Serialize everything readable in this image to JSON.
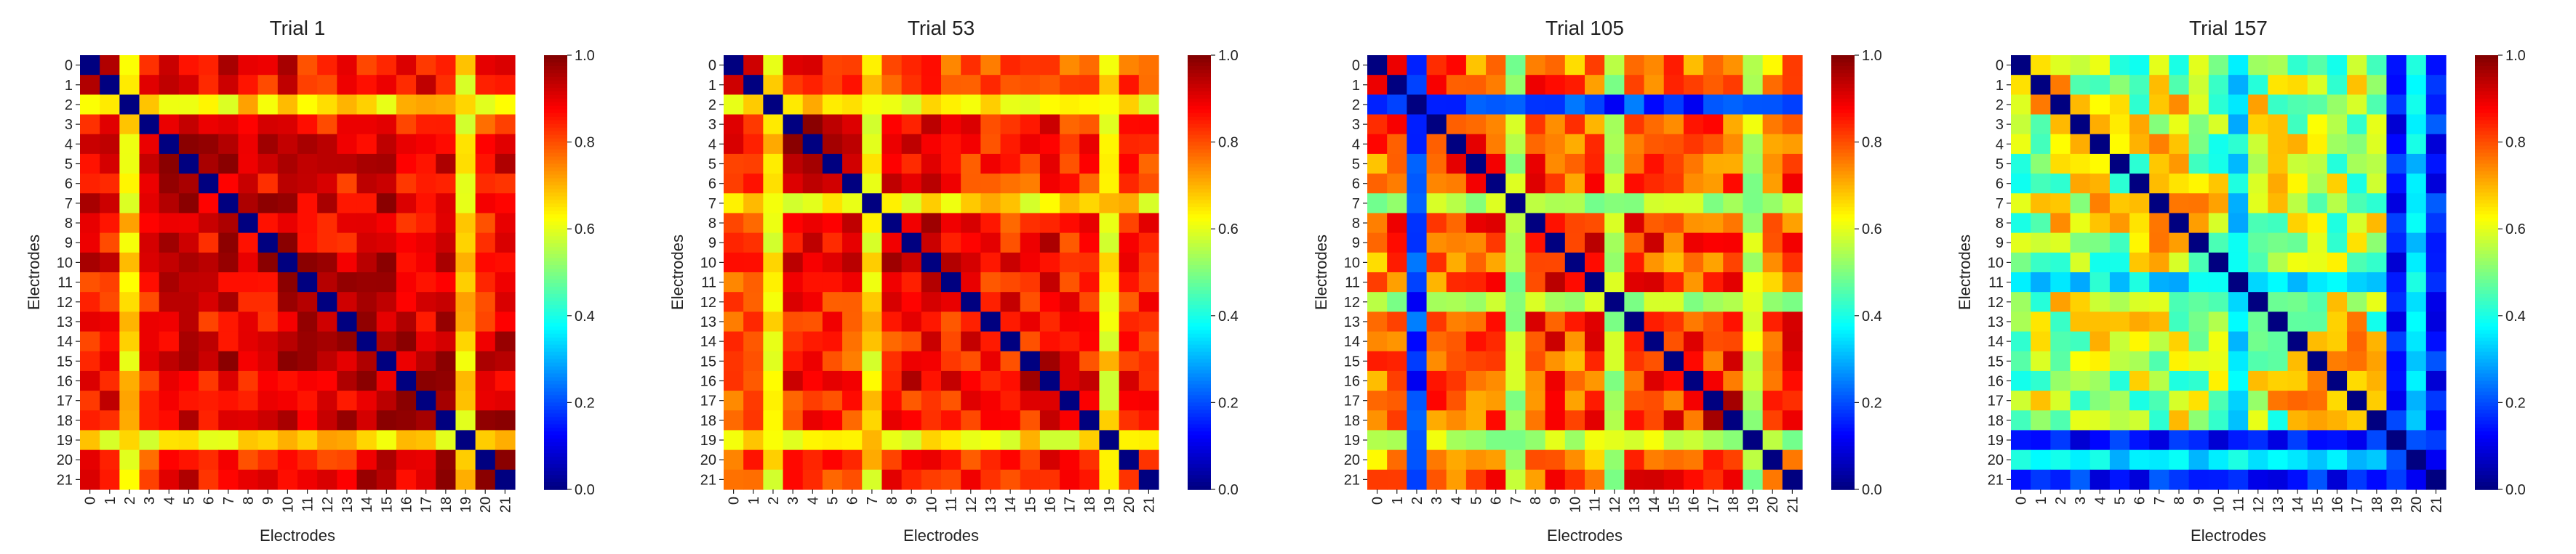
{
  "colorbar": {
    "min": 0.0,
    "max": 1.0,
    "ticks": [
      "0.0",
      "0.2",
      "0.4",
      "0.6",
      "0.8",
      "1.0"
    ],
    "colormap": "jet"
  },
  "chart_data": [
    {
      "type": "heatmap",
      "title": "Trial 1",
      "xlabel": "Electrodes",
      "ylabel": "Electrodes",
      "x_ticks": [
        "0",
        "1",
        "2",
        "3",
        "4",
        "5",
        "6",
        "7",
        "8",
        "9",
        "10",
        "11",
        "12",
        "13",
        "14",
        "15",
        "16",
        "17",
        "18",
        "19",
        "20",
        "21"
      ],
      "y_ticks": [
        "0",
        "1",
        "2",
        "3",
        "4",
        "5",
        "6",
        "7",
        "8",
        "9",
        "10",
        "11",
        "12",
        "13",
        "14",
        "15",
        "16",
        "17",
        "18",
        "19",
        "20",
        "21"
      ],
      "vmin": 0.0,
      "vmax": 1.0,
      "regime": "strong",
      "weak_rows": [
        2,
        19
      ],
      "weak_level": 0.65,
      "dark_rows": [],
      "base": 0.88,
      "diag": 0.0,
      "seed": 11
    },
    {
      "type": "heatmap",
      "title": "Trial 53",
      "xlabel": "Electrodes",
      "ylabel": "Electrodes",
      "x_ticks": [
        "0",
        "1",
        "2",
        "3",
        "4",
        "5",
        "6",
        "7",
        "8",
        "9",
        "10",
        "11",
        "12",
        "13",
        "14",
        "15",
        "16",
        "17",
        "18",
        "19",
        "20",
        "21"
      ],
      "y_ticks": [
        "0",
        "1",
        "2",
        "3",
        "4",
        "5",
        "6",
        "7",
        "8",
        "9",
        "10",
        "11",
        "12",
        "13",
        "14",
        "15",
        "16",
        "17",
        "18",
        "19",
        "20",
        "21"
      ],
      "vmin": 0.0,
      "vmax": 1.0,
      "regime": "strong",
      "weak_rows": [
        2,
        7,
        19
      ],
      "weak_level": 0.64,
      "dark_rows": [],
      "base": 0.84,
      "diag": 0.0,
      "seed": 53
    },
    {
      "type": "heatmap",
      "title": "Trial 105",
      "xlabel": "Electrodes",
      "ylabel": "Electrodes",
      "x_ticks": [
        "0",
        "1",
        "2",
        "3",
        "4",
        "5",
        "6",
        "7",
        "8",
        "9",
        "10",
        "11",
        "12",
        "13",
        "14",
        "15",
        "16",
        "17",
        "18",
        "19",
        "20",
        "21"
      ],
      "y_ticks": [
        "0",
        "1",
        "2",
        "3",
        "4",
        "5",
        "6",
        "7",
        "8",
        "9",
        "10",
        "11",
        "12",
        "13",
        "14",
        "15",
        "16",
        "17",
        "18",
        "19",
        "20",
        "21"
      ],
      "vmin": 0.0,
      "vmax": 1.0,
      "regime": "medium",
      "weak_rows": [
        7,
        12,
        19
      ],
      "weak_level": 0.55,
      "dark_rows": [
        2
      ],
      "dark_level": 0.18,
      "base": 0.76,
      "diag": 0.0,
      "seed": 105
    },
    {
      "type": "heatmap",
      "title": "Trial 157",
      "xlabel": "Electrodes",
      "ylabel": "Electrodes",
      "x_ticks": [
        "0",
        "1",
        "2",
        "3",
        "4",
        "5",
        "6",
        "7",
        "8",
        "9",
        "10",
        "11",
        "12",
        "13",
        "14",
        "15",
        "16",
        "17",
        "18",
        "19",
        "20",
        "21"
      ],
      "y_ticks": [
        "0",
        "1",
        "2",
        "3",
        "4",
        "5",
        "6",
        "7",
        "8",
        "9",
        "10",
        "11",
        "12",
        "13",
        "14",
        "15",
        "16",
        "17",
        "18",
        "19",
        "20",
        "21"
      ],
      "vmin": 0.0,
      "vmax": 1.0,
      "regime": "weak",
      "weak_rows": [
        11,
        20
      ],
      "weak_level": 0.35,
      "dark_rows": [
        19,
        21
      ],
      "dark_level": 0.15,
      "base": 0.55,
      "diag": 0.0,
      "seed": 157
    }
  ]
}
